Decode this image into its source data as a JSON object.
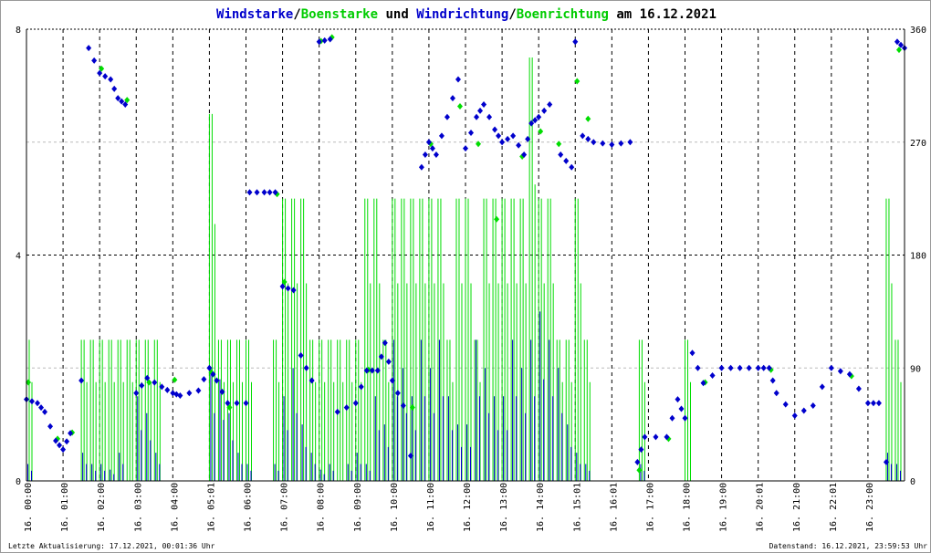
{
  "chart_data": {
    "type": "scatter",
    "title_parts": [
      {
        "text": "Windstarke",
        "color": "#0000cc"
      },
      {
        "text": "/",
        "color": "#000000"
      },
      {
        "text": "Boenstarke",
        "color": "#00cc00"
      },
      {
        "text": " und ",
        "color": "#000000"
      },
      {
        "text": "Windrichtung",
        "color": "#0000cc"
      },
      {
        "text": "/",
        "color": "#000000"
      },
      {
        "text": "Boenrichtung",
        "color": "#00cc00"
      },
      {
        "text": " am 16.12.2021",
        "color": "#000000"
      }
    ],
    "x_unit": "hours",
    "xlim": [
      0,
      24
    ],
    "ylim_left": [
      0,
      8
    ],
    "yticks_left": [
      "0",
      "4",
      "8"
    ],
    "ylim_right": [
      0,
      360
    ],
    "yticks_right": [
      "0",
      "90",
      "180",
      "270",
      "360"
    ],
    "xtick_labels": [
      "16. 00:00",
      "16. 01:00",
      "16. 02:00",
      "16. 03:00",
      "16. 04:00",
      "16. 05:01",
      "16. 06:00",
      "16. 07:00",
      "16. 08:00",
      "16. 09:00",
      "16. 10:00",
      "16. 11:00",
      "16. 12:00",
      "16. 13:00",
      "16. 14:00",
      "16. 15:01",
      "16. 16:01",
      "16. 17:00",
      "16. 18:00",
      "16. 19:00",
      "16. 20:01",
      "16. 21:00",
      "16. 22:01",
      "16. 23:00"
    ],
    "series_colors": {
      "wind": "#0000cc",
      "gust": "#00dd00"
    },
    "wind_speed_step_hours": 0.25,
    "wind_speed": [
      0.3,
      0,
      0,
      0,
      0,
      0,
      0.5,
      0.3,
      0.3,
      0.2,
      0.5,
      0,
      1.5,
      1.2,
      0.5,
      0,
      0,
      0,
      0,
      0,
      2.0,
      1.8,
      1.2,
      0.5,
      0.3,
      0,
      0,
      0.3,
      1.5,
      2.0,
      1.0,
      0.5,
      0.2,
      0.3,
      0,
      0.3,
      0.5,
      0.3,
      1.5,
      1.0,
      2.5,
      2.0,
      1.5,
      2.5,
      2.0,
      2.5,
      1.5,
      1.0,
      1.0,
      2.5,
      2.0,
      1.5,
      1.5,
      2.5,
      2.0,
      2.5,
      3.0,
      2.5,
      2.0,
      1.0,
      0.5,
      0.3,
      0,
      0,
      0,
      0,
      0,
      0.3,
      0,
      0,
      0,
      0,
      0,
      0,
      0,
      0,
      0,
      0,
      0,
      0,
      0,
      0,
      0,
      0,
      0,
      0,
      0,
      0,
      0,
      0,
      0,
      0,
      0,
      0,
      0.5,
      0.3
    ],
    "gust_speed": [
      2.5,
      0,
      0,
      0,
      0,
      0,
      2.5,
      2.5,
      2.5,
      2.5,
      2.5,
      2.5,
      2.5,
      2.5,
      2.5,
      0,
      0,
      0,
      0,
      0,
      6.5,
      2.5,
      2.5,
      2.5,
      2.5,
      0,
      0,
      2.5,
      5,
      5,
      5,
      2.5,
      2.5,
      2.5,
      2.5,
      2.5,
      2.5,
      5,
      5,
      2.5,
      5,
      5,
      5,
      5,
      5,
      5,
      2.5,
      5,
      5,
      2.5,
      5,
      5,
      5,
      5,
      5,
      7.5,
      5,
      5,
      2.5,
      2.5,
      5,
      2.5,
      0,
      0,
      0,
      0,
      0,
      2.5,
      0,
      0,
      0,
      0,
      2.5,
      0,
      0,
      0,
      0,
      0,
      0,
      0,
      0,
      0,
      0,
      0,
      0,
      0,
      0,
      0,
      0,
      0,
      0,
      0,
      0,
      0,
      5,
      2.5
    ],
    "wind_direction": [
      [
        0,
        65
      ],
      [
        0.3,
        62
      ],
      [
        0.5,
        55
      ],
      [
        0.8,
        32
      ],
      [
        1.0,
        25
      ],
      [
        1.2,
        38
      ],
      [
        1.5,
        80
      ],
      [
        1.7,
        345
      ],
      [
        2.0,
        325
      ],
      [
        2.3,
        320
      ],
      [
        2.5,
        305
      ],
      [
        2.7,
        300
      ],
      [
        3.0,
        70
      ],
      [
        3.3,
        82
      ],
      [
        3.7,
        75
      ],
      [
        4.0,
        70
      ],
      [
        4.2,
        68
      ],
      [
        4.7,
        72
      ],
      [
        5.0,
        90
      ],
      [
        5.2,
        80
      ],
      [
        5.5,
        62
      ],
      [
        6.0,
        62
      ],
      [
        6.1,
        230
      ],
      [
        6.5,
        230
      ],
      [
        6.8,
        230
      ],
      [
        7.0,
        155
      ],
      [
        7.3,
        152
      ],
      [
        7.5,
        100
      ],
      [
        7.8,
        80
      ],
      [
        8.0,
        350
      ],
      [
        8.3,
        352
      ],
      [
        8.5,
        55
      ],
      [
        9.0,
        62
      ],
      [
        9.3,
        88
      ],
      [
        9.6,
        88
      ],
      [
        9.8,
        110
      ],
      [
        10.0,
        80
      ],
      [
        10.3,
        60
      ],
      [
        10.5,
        20
      ],
      [
        10.8,
        250
      ],
      [
        11.0,
        270
      ],
      [
        11.2,
        260
      ],
      [
        11.5,
        290
      ],
      [
        11.8,
        320
      ],
      [
        12.0,
        265
      ],
      [
        12.3,
        290
      ],
      [
        12.5,
        300
      ],
      [
        12.8,
        280
      ],
      [
        13.0,
        270
      ],
      [
        13.3,
        275
      ],
      [
        13.6,
        260
      ],
      [
        13.8,
        285
      ],
      [
        14.0,
        290
      ],
      [
        14.3,
        300
      ],
      [
        14.6,
        260
      ],
      [
        14.9,
        250
      ],
      [
        15.0,
        350
      ],
      [
        15.2,
        275
      ],
      [
        15.5,
        270
      ],
      [
        16.0,
        268
      ],
      [
        16.5,
        270
      ],
      [
        16.7,
        15
      ],
      [
        16.9,
        35
      ],
      [
        17.5,
        35
      ],
      [
        17.8,
        65
      ],
      [
        18.0,
        50
      ],
      [
        18.2,
        102
      ],
      [
        18.5,
        78
      ],
      [
        19.0,
        90
      ],
      [
        19.5,
        90
      ],
      [
        20.0,
        90
      ],
      [
        20.3,
        90
      ],
      [
        20.5,
        70
      ],
      [
        21.0,
        52
      ],
      [
        21.5,
        60
      ],
      [
        22.0,
        90
      ],
      [
        22.5,
        85
      ],
      [
        23.0,
        62
      ],
      [
        23.3,
        62
      ],
      [
        23.5,
        15
      ],
      [
        23.8,
        350
      ],
      [
        24.0,
        345
      ]
    ],
    "gust_direction": [
      [
        0,
        80
      ],
      [
        0.8,
        35
      ],
      [
        1.2,
        40
      ],
      [
        2.0,
        330
      ],
      [
        2.7,
        305
      ],
      [
        3.3,
        80
      ],
      [
        4.0,
        82
      ],
      [
        5.0,
        88
      ],
      [
        5.5,
        60
      ],
      [
        6.8,
        230
      ],
      [
        7.0,
        160
      ],
      [
        8.0,
        352
      ],
      [
        8.3,
        355
      ],
      [
        9.3,
        90
      ],
      [
        10.5,
        60
      ],
      [
        11.0,
        270
      ],
      [
        11.8,
        300
      ],
      [
        12.3,
        270
      ],
      [
        12.8,
        210
      ],
      [
        13.5,
        260
      ],
      [
        14.0,
        280
      ],
      [
        14.5,
        270
      ],
      [
        15.0,
        320
      ],
      [
        15.3,
        290
      ],
      [
        16.7,
        10
      ],
      [
        17.5,
        35
      ],
      [
        18.5,
        80
      ],
      [
        20.3,
        90
      ],
      [
        22.5,
        85
      ],
      [
        23.8,
        345
      ]
    ],
    "grid": true
  },
  "footer": {
    "left": "Letzte Aktualisierung: 17.12.2021, 00:01:36 Uhr",
    "right": "Datenstand: 16.12.2021, 23:59:53 Uhr"
  }
}
